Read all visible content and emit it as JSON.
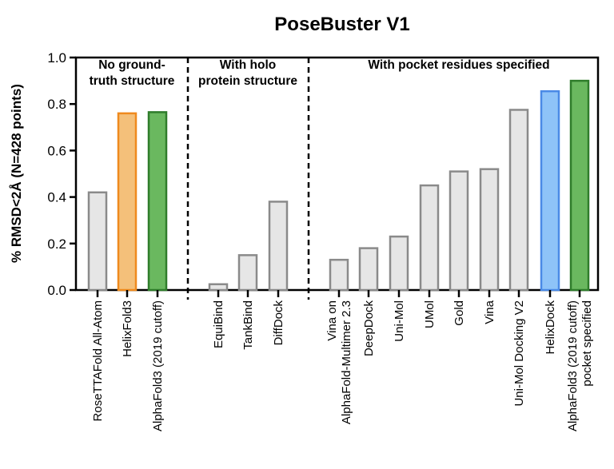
{
  "chart_data": {
    "type": "bar",
    "title": "PoseBuster V1",
    "ylabel": "% RMSD<2Å (N=428 points)",
    "xlabel": "",
    "ylim": [
      0,
      1.0
    ],
    "yticks": [
      "0.0",
      "0.2",
      "0.4",
      "0.6",
      "0.8",
      "1.0"
    ],
    "groups": [
      {
        "label_lines": [
          "No ground-",
          "truth structure"
        ]
      },
      {
        "label_lines": [
          "With holo",
          "protein structure"
        ]
      },
      {
        "label_lines": [
          "With pocket residues specified"
        ]
      }
    ],
    "bars": [
      {
        "label_lines": [
          "RoseTTAFold All-Atom"
        ],
        "value": 0.42,
        "color": "#e6e6e6",
        "edge": "#8a8a8a",
        "group": 0
      },
      {
        "label_lines": [
          "HelixFold3"
        ],
        "value": 0.76,
        "color": "#f4c07a",
        "edge": "#ef8a1e",
        "group": 0
      },
      {
        "label_lines": [
          "AlphaFold3 (2019 cutoff)"
        ],
        "value": 0.765,
        "color": "#6ab85f",
        "edge": "#2f7d2b",
        "group": 0
      },
      {
        "label_lines": [
          "EquiBind"
        ],
        "value": 0.025,
        "color": "#e6e6e6",
        "edge": "#8a8a8a",
        "group": 1
      },
      {
        "label_lines": [
          "TankBind"
        ],
        "value": 0.15,
        "color": "#e6e6e6",
        "edge": "#8a8a8a",
        "group": 1
      },
      {
        "label_lines": [
          "DiffDock"
        ],
        "value": 0.38,
        "color": "#e6e6e6",
        "edge": "#8a8a8a",
        "group": 1
      },
      {
        "label_lines": [
          "Vina on",
          "AlphaFold-Multimer 2.3"
        ],
        "value": 0.13,
        "color": "#e6e6e6",
        "edge": "#8a8a8a",
        "group": 2
      },
      {
        "label_lines": [
          "DeepDock"
        ],
        "value": 0.18,
        "color": "#e6e6e6",
        "edge": "#8a8a8a",
        "group": 2
      },
      {
        "label_lines": [
          "Uni-Mol"
        ],
        "value": 0.23,
        "color": "#e6e6e6",
        "edge": "#8a8a8a",
        "group": 2
      },
      {
        "label_lines": [
          "UMol"
        ],
        "value": 0.45,
        "color": "#e6e6e6",
        "edge": "#8a8a8a",
        "group": 2
      },
      {
        "label_lines": [
          "Gold"
        ],
        "value": 0.51,
        "color": "#e6e6e6",
        "edge": "#8a8a8a",
        "group": 2
      },
      {
        "label_lines": [
          "Vina"
        ],
        "value": 0.52,
        "color": "#e6e6e6",
        "edge": "#8a8a8a",
        "group": 2
      },
      {
        "label_lines": [
          "Uni-Mol Docking V2"
        ],
        "value": 0.775,
        "color": "#e6e6e6",
        "edge": "#8a8a8a",
        "group": 2
      },
      {
        "label_lines": [
          "HelixDock"
        ],
        "value": 0.855,
        "color": "#8ec3f8",
        "edge": "#4a8ae6",
        "group": 2
      },
      {
        "label_lines": [
          "AlphaFold3 (2019 cutoff)",
          "pocket specified"
        ],
        "value": 0.9,
        "color": "#6ab85f",
        "edge": "#2f7d2b",
        "group": 2
      }
    ]
  }
}
